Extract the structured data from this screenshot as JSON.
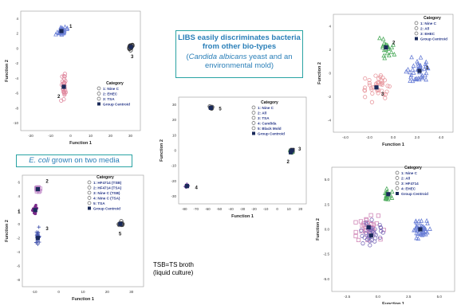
{
  "callouts": {
    "main_title": "LIBS easily discriminates bacteria from other bio-types",
    "main_sub_prefix": "(",
    "main_sub_italic": "Candida albicans",
    "main_sub_rest": " yeast and an environmental mold)",
    "ecoli_italic": "E. coli",
    "ecoli_rest": " grown on two media"
  },
  "tsb_note_line1": "TSB=TS broth",
  "tsb_note_line2": "(liquid culture)",
  "chart_data": [
    {
      "type": "scatter",
      "xlabel": "Function 1",
      "ylabel": "Function 2",
      "xticks": [
        "-20",
        "-10",
        "0",
        "10",
        "20",
        "30"
      ],
      "yticks": [
        "4",
        "2",
        "0",
        "-2",
        "-4",
        "-6",
        "-8",
        "-10"
      ],
      "legend_title": "Category",
      "legend": [
        "1: Nine C",
        "2: EHEC",
        "3: TSA",
        "Group Centroid"
      ],
      "group_labels": [
        "1",
        "2",
        "3"
      ],
      "centroids": [
        {
          "group": "1",
          "x": -3,
          "y": 2.5
        },
        {
          "group": "2",
          "x": -2,
          "y": -4.5
        },
        {
          "group": "3",
          "x": 26,
          "y": 0.5
        }
      ],
      "colors": {
        "1": "#6a7fd6",
        "2": "#e08aa0",
        "3": "#222222"
      }
    },
    {
      "type": "scatter",
      "xlabel": "Function 1",
      "ylabel": "Function 2",
      "xticks": [
        "-80",
        "-70",
        "-60",
        "-50",
        "-40",
        "-30",
        "-20",
        "-10",
        "0",
        "10",
        "20"
      ],
      "yticks": [
        "30",
        "20",
        "10",
        "0",
        "-10",
        "-20",
        "-30"
      ],
      "legend_title": "Category",
      "legend": [
        "1: Nine C",
        "2: All",
        "3: TSA",
        "4: Candida",
        "5: Black Mold",
        "Group Centroid"
      ],
      "group_labels": [
        "5",
        "3",
        "2",
        "4"
      ],
      "centroids": [
        {
          "group": "5",
          "x": -58,
          "y": 24
        },
        {
          "group": "3",
          "x": 10,
          "y": 0
        },
        {
          "group": "2",
          "x": 9,
          "y": -1
        },
        {
          "group": "4",
          "x": -78,
          "y": -20
        }
      ]
    },
    {
      "type": "scatter",
      "xlabel": "Function 1",
      "ylabel": "Function 2",
      "xticks": [
        "-4.0",
        "-2.0",
        "0.0",
        "2.0",
        "4.0"
      ],
      "yticks": [
        "4",
        "2",
        "0",
        "-2",
        "-4"
      ],
      "legend_title": "Category",
      "legend": [
        "1: Nine C",
        "2: All",
        "3: EHEC",
        "Group Centroid"
      ],
      "group_labels": [
        "1",
        "2",
        "3"
      ],
      "centroids": [
        {
          "group": "1",
          "x": 2.2,
          "y": 0.2
        },
        {
          "group": "2",
          "x": -0.6,
          "y": 2.2
        },
        {
          "group": "3",
          "x": -1.4,
          "y": -1.2
        }
      ]
    },
    {
      "type": "scatter",
      "xlabel": "Function 1",
      "ylabel": "Function 2",
      "xticks": [
        "-10",
        "0",
        "10",
        "20",
        "30"
      ],
      "yticks": [
        "6",
        "4",
        "2",
        "0",
        "-2",
        "-4",
        "-6",
        "-8"
      ],
      "legend_title": "Category",
      "legend": [
        "1: HF4714 (TSB)",
        "2: HF4714 (TSA)",
        "3: Nine C (TSB)",
        "4: Nine C (TSA)",
        "5: TSA",
        "Group Centroid"
      ],
      "group_labels": [
        "2",
        "1",
        "3",
        "5"
      ],
      "centroids": [
        {
          "group": "2",
          "x": -6,
          "y": 5
        },
        {
          "group": "1",
          "x": -7,
          "y": 2
        },
        {
          "group": "3",
          "x": -6,
          "y": -2
        },
        {
          "group": "5",
          "x": 26,
          "y": 0
        }
      ]
    },
    {
      "type": "scatter",
      "xlabel": "Function 1",
      "ylabel": "Function 2",
      "xticks": [
        "-2.5",
        "0.0",
        "2.5",
        "5.0"
      ],
      "yticks": [
        "5.0",
        "2.5",
        "0.0",
        "-2.5",
        "-5.0"
      ],
      "legend_title": "Category",
      "legend": [
        "1: Nine C",
        "2: All",
        "3: HF4714",
        "4: EHEC",
        "Group Centroid"
      ],
      "group_labels": [],
      "centroids": [
        {
          "group": "1",
          "x": 3.2,
          "y": 0
        },
        {
          "group": "2",
          "x": 0.6,
          "y": 3.4
        },
        {
          "group": "3",
          "x": -1,
          "y": 0.2
        },
        {
          "group": "4",
          "x": -0.8,
          "y": -0.6
        }
      ]
    }
  ]
}
